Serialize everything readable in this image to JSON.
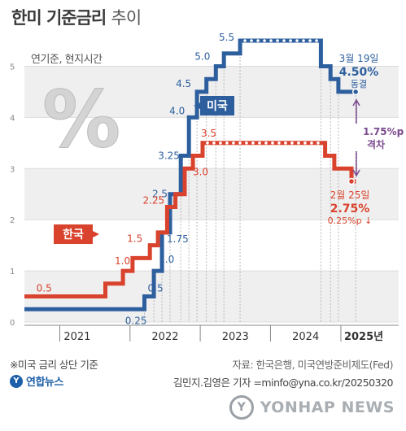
{
  "title": {
    "main": "한미 기준금리",
    "sub": "추이"
  },
  "unit_label": "연기준, 현지시간",
  "percent_glyph": "%",
  "colors": {
    "us": "#2d5f9e",
    "kr": "#d9422c",
    "axis": "#999999",
    "band": "#efefef",
    "purple": "#7b4a8f"
  },
  "chart_data": {
    "type": "line",
    "subtype": "step",
    "xlim": [
      "2020-07-01",
      "2025-03-31"
    ],
    "ylim": [
      0,
      5.5
    ],
    "yticks": [
      0,
      1.0,
      2.0,
      3.0,
      4.0,
      5.0
    ],
    "x_category_labels": [
      "2021",
      "2022",
      "2023",
      "2024",
      "2025년"
    ],
    "series": [
      {
        "name": "미국",
        "points": [
          [
            "2020-07-01",
            0.25
          ],
          [
            "2022-03-17",
            0.5
          ],
          [
            "2022-05-05",
            1.0
          ],
          [
            "2022-06-16",
            1.75
          ],
          [
            "2022-07-28",
            2.5
          ],
          [
            "2022-09-22",
            3.25
          ],
          [
            "2022-11-03",
            4.0
          ],
          [
            "2022-12-15",
            4.5
          ],
          [
            "2023-02-02",
            4.75
          ],
          [
            "2023-03-23",
            5.0
          ],
          [
            "2023-05-04",
            5.25
          ],
          [
            "2023-07-27",
            5.5
          ],
          [
            "2024-09-19",
            5.0
          ],
          [
            "2024-11-08",
            4.75
          ],
          [
            "2024-12-19",
            4.5
          ],
          [
            "2025-03-19",
            4.5
          ]
        ],
        "point_labels": [
          [
            "2021-12-15",
            0.25,
            "0.25"
          ],
          [
            "2022-03-17",
            0.5,
            "0.5"
          ],
          [
            "2022-05-05",
            1.0,
            "1.0"
          ],
          [
            "2022-06-16",
            1.75,
            "1.75"
          ],
          [
            "2022-07-28",
            2.5,
            "2.5"
          ],
          [
            "2022-09-22",
            3.25,
            "3.25"
          ],
          [
            "2022-11-03",
            4.0,
            "4.0"
          ],
          [
            "2022-12-15",
            4.5,
            "4.5"
          ],
          [
            "2023-03-23",
            5.0,
            "5.0"
          ],
          [
            "2023-07-27",
            5.5,
            "5.5"
          ]
        ]
      },
      {
        "name": "한국",
        "points": [
          [
            "2020-07-01",
            0.5
          ],
          [
            "2021-08-26",
            0.75
          ],
          [
            "2021-11-25",
            1.0
          ],
          [
            "2022-01-14",
            1.25
          ],
          [
            "2022-04-14",
            1.5
          ],
          [
            "2022-05-26",
            1.75
          ],
          [
            "2022-07-13",
            2.25
          ],
          [
            "2022-08-25",
            2.5
          ],
          [
            "2022-10-12",
            3.0
          ],
          [
            "2022-11-24",
            3.25
          ],
          [
            "2023-01-13",
            3.5
          ],
          [
            "2024-10-11",
            3.25
          ],
          [
            "2024-11-28",
            3.0
          ],
          [
            "2025-02-25",
            2.75
          ],
          [
            "2025-03-20",
            2.75
          ]
        ],
        "point_labels": [
          [
            "2020-09-01",
            0.5,
            "0.5"
          ],
          [
            "2021-11-25",
            1.0,
            "1.0"
          ],
          [
            "2022-04-14",
            1.5,
            "1.5"
          ],
          [
            "2022-07-13",
            2.25,
            "2.25"
          ],
          [
            "2022-10-12",
            3.0,
            "3.0"
          ],
          [
            "2023-01-13",
            3.5,
            "3.5"
          ]
        ]
      }
    ],
    "annotations": {
      "us_date": "3월 19일",
      "us_value": "4.50%",
      "us_note": "동결",
      "kr_date": "2월 25일",
      "kr_value": "2.75%",
      "kr_note": "0.25%p ↓",
      "gap_value": "1.75%p",
      "gap_label": "격차"
    },
    "legend": {
      "us": "미국",
      "kr": "한국"
    }
  },
  "footnote": "※미국 금리 상단 기준",
  "source": "자료: 한국은행, 미국연방준비제도(Fed)",
  "credit": "김민지.김영은 기자 =minfo@yna.co.kr/20250320",
  "logo_text": "연합뉴스",
  "watermark": "YONHAP NEWS"
}
